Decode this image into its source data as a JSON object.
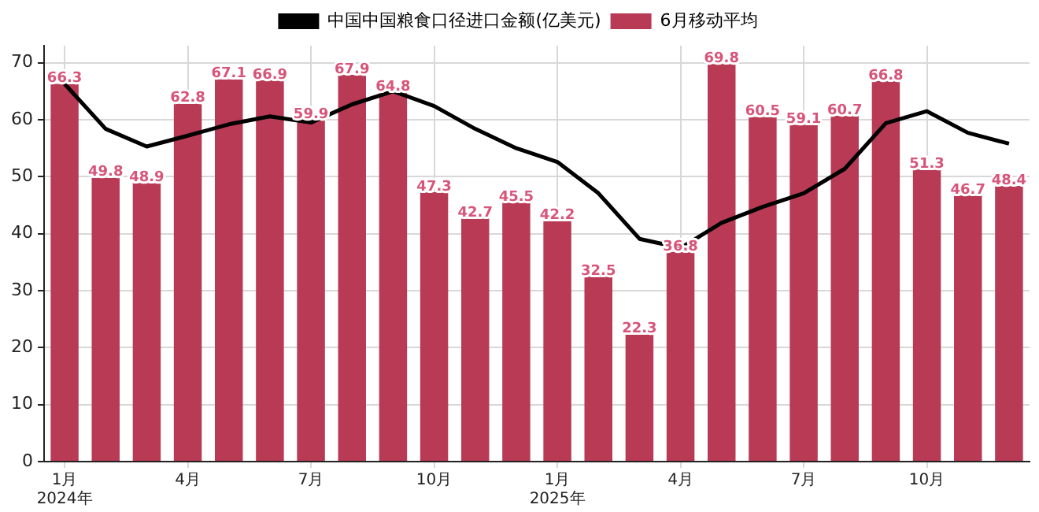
{
  "chart_data": {
    "type": "bar",
    "categories": [
      "1月\n2024年",
      null,
      null,
      "4月",
      null,
      null,
      "7月",
      null,
      null,
      "10月",
      null,
      null,
      "1月\n2025年",
      null,
      null,
      "4月",
      null,
      null,
      "7月",
      null,
      null,
      "10月",
      null,
      null
    ],
    "series": [
      {
        "name": "中国中国粮食口径进口金额(亿美元)",
        "type": "line",
        "color": "#000000",
        "values": [
          66.3,
          58.4,
          55.3,
          57.2,
          59.2,
          60.6,
          59.5,
          62.7,
          65.0,
          62.4,
          58.4,
          55.0,
          52.6,
          47.1,
          39.1,
          37.5,
          41.9,
          44.7,
          47.1,
          51.4,
          59.4,
          61.5,
          57.7,
          55.8
        ]
      },
      {
        "name": "6月移动平均",
        "color": "#b83a55",
        "values": [
          66.3,
          49.8,
          48.9,
          62.8,
          67.1,
          66.9,
          59.9,
          67.9,
          64.8,
          47.3,
          42.7,
          45.5,
          42.2,
          32.5,
          22.3,
          36.8,
          69.8,
          60.5,
          59.1,
          60.7,
          66.8,
          51.3,
          46.7,
          48.4
        ],
        "value_labels": [
          "66.3",
          "49.8",
          "48.9",
          "62.8",
          "67.1",
          "66.9",
          "59.9",
          "67.9",
          "64.8",
          "47.3",
          "42.7",
          "45.5",
          "42.2",
          "32.5",
          "22.3",
          "36.8",
          "69.8",
          "60.5",
          "59.1",
          "60.7",
          "66.8",
          "51.3",
          "46.7",
          "48.4"
        ]
      }
    ],
    "ylim": [
      0,
      73
    ],
    "yticks": [
      0,
      10,
      20,
      30,
      40,
      50,
      60,
      70
    ],
    "grid": true,
    "legend": "top",
    "marker": "none"
  }
}
